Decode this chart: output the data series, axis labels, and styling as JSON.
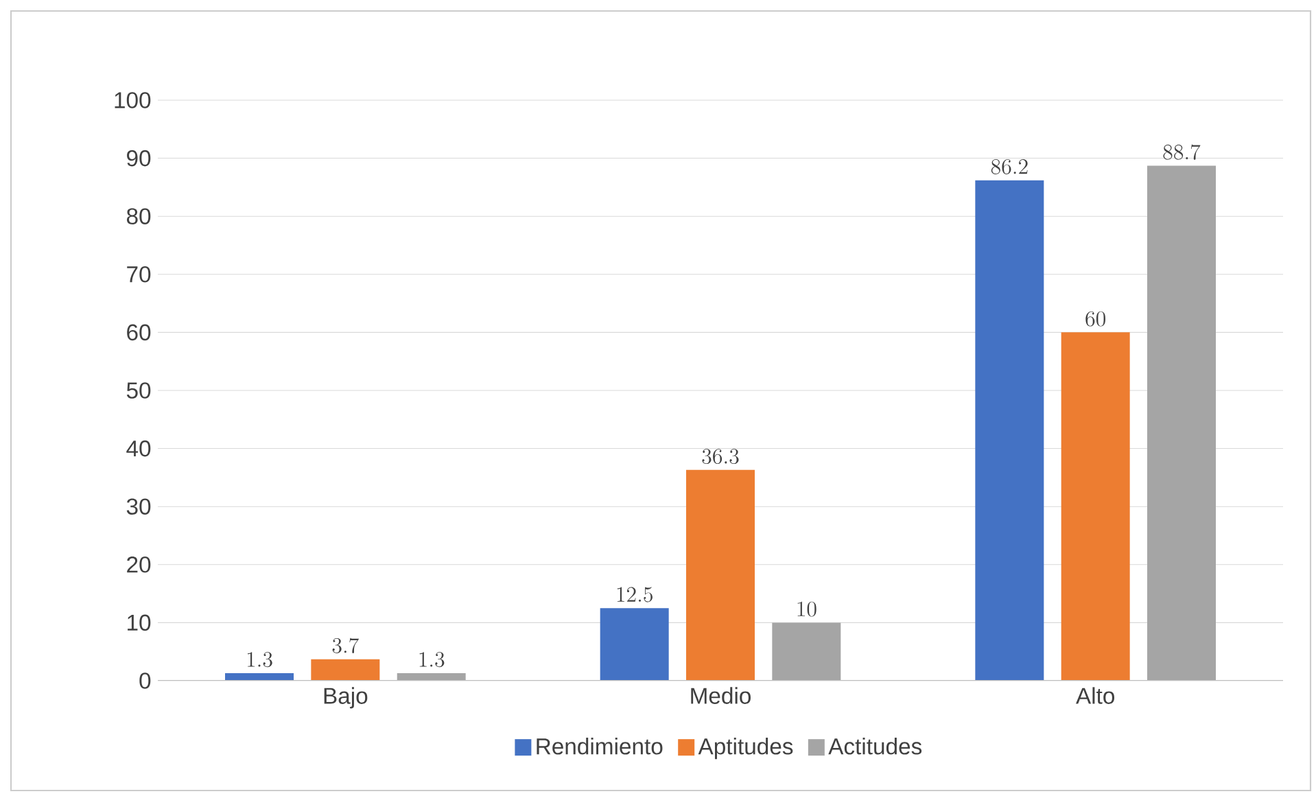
{
  "chart_data": {
    "type": "bar",
    "categories": [
      "Bajo",
      "Medio",
      "Alto"
    ],
    "series": [
      {
        "name": "Rendimiento",
        "color": "#4472c4",
        "values": [
          1.3,
          12.5,
          86.2
        ]
      },
      {
        "name": "Aptitudes",
        "color": "#ed7d31",
        "values": [
          3.7,
          36.3,
          60
        ]
      },
      {
        "name": "Actitudes",
        "color": "#a5a5a5",
        "values": [
          1.3,
          10,
          88.7
        ]
      }
    ],
    "ylim": [
      0,
      100
    ],
    "yticks": [
      0,
      10,
      20,
      30,
      40,
      50,
      60,
      70,
      80,
      90,
      100
    ],
    "grid": "y",
    "legend": "bottom",
    "data_labels": true
  }
}
